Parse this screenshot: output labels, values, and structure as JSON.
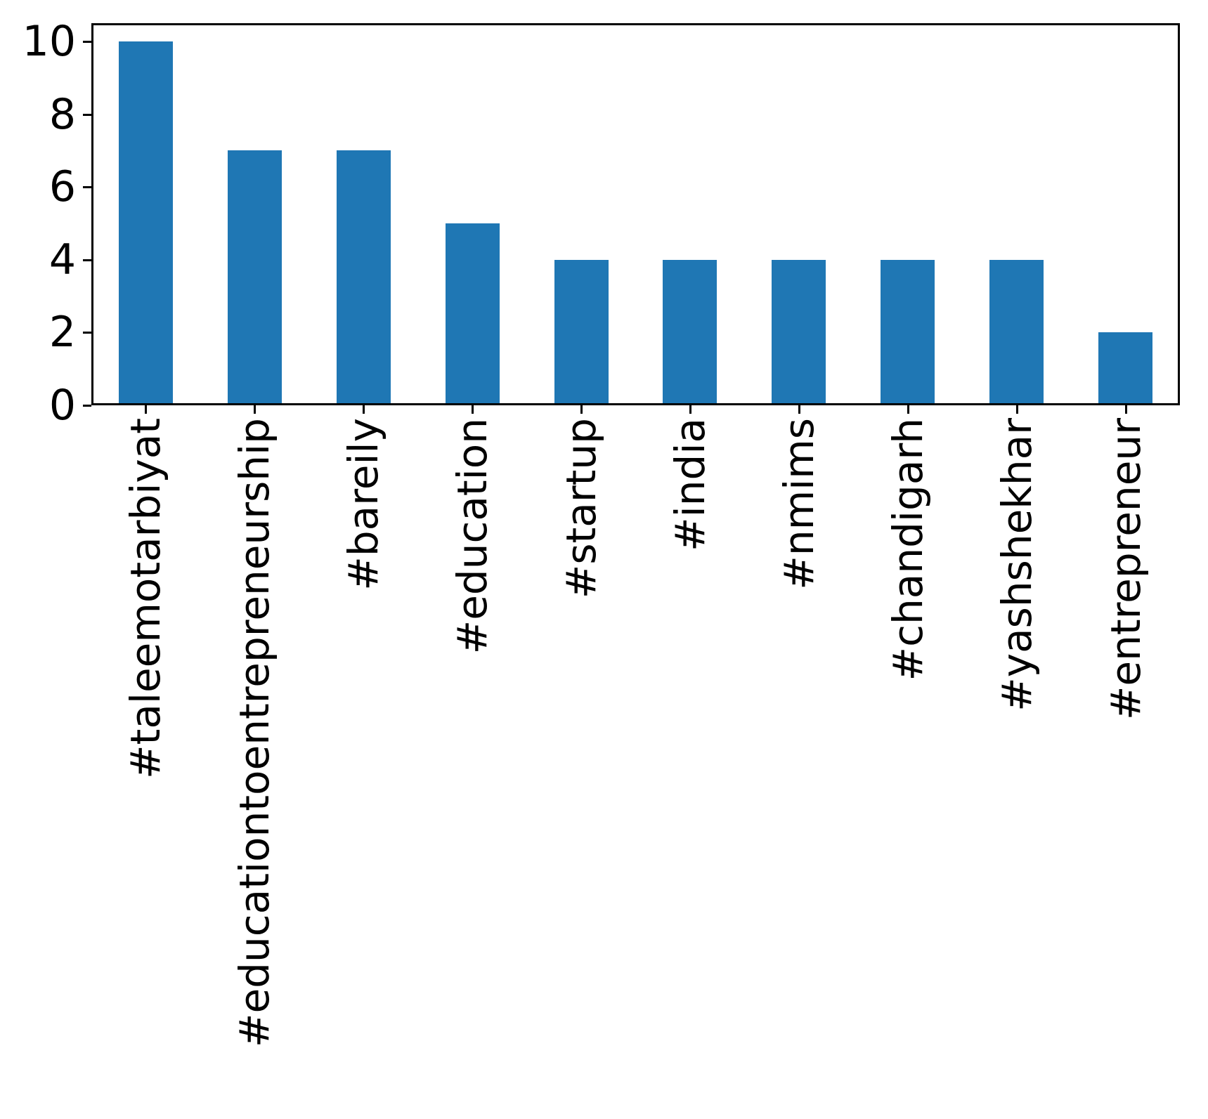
{
  "chart_data": {
    "type": "bar",
    "categories": [
      "#taleemotarbiyat",
      "#educationtoentrepreneurship",
      "#bareily",
      "#education",
      "#startup",
      "#india",
      "#nmims",
      "#chandigarh",
      "#yashshekhar",
      "#entrepreneur"
    ],
    "values": [
      10,
      7,
      7,
      5,
      4,
      4,
      4,
      4,
      4,
      2
    ],
    "title": "",
    "xlabel": "",
    "ylabel": "",
    "ylim": [
      0,
      10.5
    ],
    "yticks": [
      "0",
      "2",
      "4",
      "6",
      "8",
      "10"
    ],
    "ytick_values": [
      0,
      2,
      4,
      6,
      8,
      10
    ],
    "bar_color": "#1f77b4",
    "axis_color": "#000000",
    "background": "#ffffff",
    "grid": false,
    "legend_visible": false,
    "x_label_rotation_deg": 90
  }
}
